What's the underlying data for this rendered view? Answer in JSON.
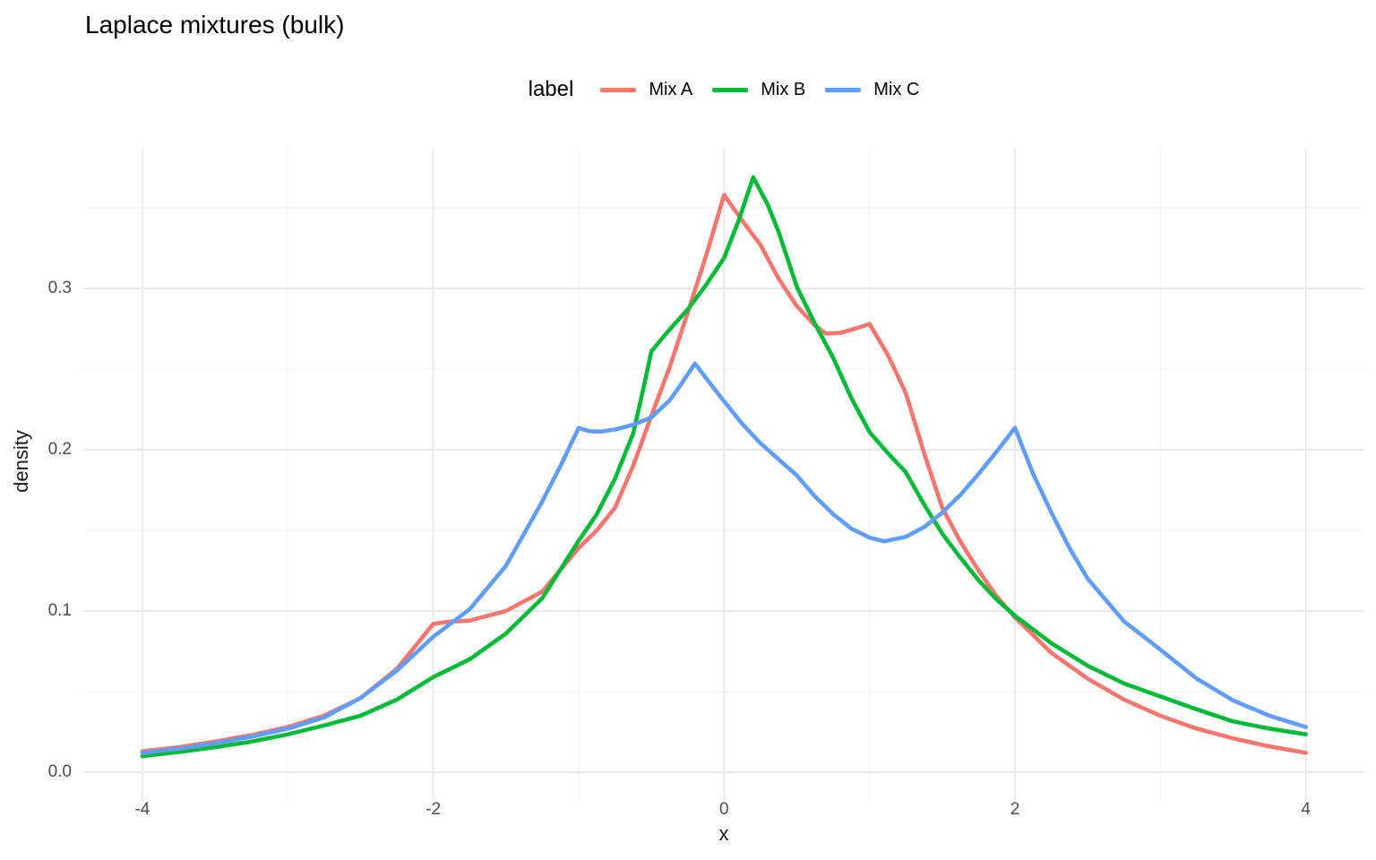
{
  "title": "Laplace mixtures (bulk)",
  "legend": {
    "title": "label",
    "items": [
      {
        "label": "Mix A",
        "color": "#F8766D"
      },
      {
        "label": "Mix B",
        "color": "#00BA38"
      },
      {
        "label": "Mix C",
        "color": "#619CFF"
      }
    ]
  },
  "axes": {
    "x_title": "x",
    "y_title": "density"
  },
  "colors": {
    "background": "#FFFFFF",
    "grid_major": "#E9E9E9",
    "grid_minor": "#F2F2F2",
    "tick_text": "#4D4D4D",
    "title_text": "#000000"
  },
  "chart_data": {
    "type": "line",
    "title": "Laplace mixtures (bulk)",
    "xlabel": "x",
    "ylabel": "density",
    "legend_title": "label",
    "legend_position": "top-center",
    "grid": "major and minor, light gray on white (ggplot theme_minimal)",
    "xlim": [
      -4.4,
      4.4
    ],
    "ylim": [
      -0.018,
      0.387
    ],
    "x_major_ticks": [
      {
        "label": "-4",
        "value": -4
      },
      {
        "label": "-2",
        "value": -2
      },
      {
        "label": "0",
        "value": 0
      },
      {
        "label": "2",
        "value": 2
      },
      {
        "label": "4",
        "value": 4
      }
    ],
    "x_minor_ticks": [
      -3,
      -1,
      1,
      3
    ],
    "y_major_ticks": [
      {
        "label": "0.0",
        "value": 0
      },
      {
        "label": "0.1",
        "value": 0.1
      },
      {
        "label": "0.2",
        "value": 0.2
      },
      {
        "label": "0.3",
        "value": 0.3
      }
    ],
    "y_minor_ticks": [
      0.05,
      0.15,
      0.25,
      0.35
    ],
    "features": {
      "mix_a": "peak 0.358 at x=0, secondary local max 0.278 at x=1, kink 0.092 at x=-2",
      "mix_b": "peak 0.369 at x=0.2, kink 0.261 at x=-0.5",
      "mix_c": "peak 0.2535 at x=-0.2, kink local max 0.2135 at x=-1, local min 0.143 at x=1.1, peak 0.2135 at x=2"
    },
    "series": [
      {
        "name": "Mix A",
        "color": "#F8766D",
        "points": [
          [
            -4,
            0.013
          ],
          [
            -3.75,
            0.0155
          ],
          [
            -3.5,
            0.019
          ],
          [
            -3.25,
            0.023
          ],
          [
            -3,
            0.028
          ],
          [
            -2.75,
            0.035
          ],
          [
            -2.5,
            0.046
          ],
          [
            -2.25,
            0.064
          ],
          [
            -2,
            0.092
          ],
          [
            -1.875,
            0.0935
          ],
          [
            -1.75,
            0.094
          ],
          [
            -1.5,
            0.1
          ],
          [
            -1.25,
            0.112
          ],
          [
            -1,
            0.139
          ],
          [
            -0.875,
            0.15
          ],
          [
            -0.75,
            0.164
          ],
          [
            -0.625,
            0.19
          ],
          [
            -0.5,
            0.221
          ],
          [
            -0.375,
            0.251
          ],
          [
            -0.25,
            0.285
          ],
          [
            -0.125,
            0.32
          ],
          [
            0,
            0.358
          ],
          [
            0.125,
            0.342
          ],
          [
            0.25,
            0.327
          ],
          [
            0.375,
            0.306
          ],
          [
            0.5,
            0.289
          ],
          [
            0.625,
            0.277
          ],
          [
            0.7,
            0.272
          ],
          [
            0.8,
            0.2725
          ],
          [
            0.9,
            0.275
          ],
          [
            1,
            0.278
          ],
          [
            1.125,
            0.259
          ],
          [
            1.25,
            0.235
          ],
          [
            1.375,
            0.198
          ],
          [
            1.5,
            0.164
          ],
          [
            1.625,
            0.143
          ],
          [
            1.75,
            0.125
          ],
          [
            1.875,
            0.109
          ],
          [
            2,
            0.096
          ],
          [
            2.25,
            0.074
          ],
          [
            2.5,
            0.058
          ],
          [
            2.75,
            0.045
          ],
          [
            3,
            0.035
          ],
          [
            3.25,
            0.027
          ],
          [
            3.5,
            0.021
          ],
          [
            3.75,
            0.016
          ],
          [
            4,
            0.012
          ]
        ]
      },
      {
        "name": "Mix B",
        "color": "#00BA38",
        "points": [
          [
            -4,
            0.01
          ],
          [
            -3.75,
            0.0125
          ],
          [
            -3.5,
            0.0155
          ],
          [
            -3.25,
            0.019
          ],
          [
            -3,
            0.0235
          ],
          [
            -2.75,
            0.029
          ],
          [
            -2.5,
            0.035
          ],
          [
            -2.25,
            0.045
          ],
          [
            -2,
            0.059
          ],
          [
            -1.75,
            0.07
          ],
          [
            -1.5,
            0.086
          ],
          [
            -1.25,
            0.108
          ],
          [
            -1,
            0.1435
          ],
          [
            -0.875,
            0.16
          ],
          [
            -0.75,
            0.182
          ],
          [
            -0.625,
            0.21
          ],
          [
            -0.55,
            0.24
          ],
          [
            -0.5,
            0.261
          ],
          [
            -0.375,
            0.2745
          ],
          [
            -0.25,
            0.287
          ],
          [
            -0.125,
            0.302
          ],
          [
            0,
            0.319
          ],
          [
            0.1,
            0.342
          ],
          [
            0.2,
            0.369
          ],
          [
            0.3,
            0.352
          ],
          [
            0.375,
            0.335
          ],
          [
            0.5,
            0.301
          ],
          [
            0.625,
            0.278
          ],
          [
            0.75,
            0.257
          ],
          [
            0.875,
            0.232
          ],
          [
            1,
            0.211
          ],
          [
            1.125,
            0.198
          ],
          [
            1.25,
            0.186
          ],
          [
            1.375,
            0.166
          ],
          [
            1.5,
            0.148
          ],
          [
            1.625,
            0.133
          ],
          [
            1.75,
            0.119
          ],
          [
            1.875,
            0.107
          ],
          [
            2,
            0.097
          ],
          [
            2.25,
            0.08
          ],
          [
            2.5,
            0.066
          ],
          [
            2.75,
            0.055
          ],
          [
            3,
            0.047
          ],
          [
            3.25,
            0.039
          ],
          [
            3.5,
            0.0315
          ],
          [
            3.75,
            0.027
          ],
          [
            4,
            0.0235
          ]
        ]
      },
      {
        "name": "Mix C",
        "color": "#619CFF",
        "points": [
          [
            -4,
            0.012
          ],
          [
            -3.75,
            0.0145
          ],
          [
            -3.5,
            0.018
          ],
          [
            -3.25,
            0.022
          ],
          [
            -3,
            0.027
          ],
          [
            -2.75,
            0.034
          ],
          [
            -2.5,
            0.046
          ],
          [
            -2.25,
            0.063
          ],
          [
            -2,
            0.084
          ],
          [
            -1.75,
            0.101
          ],
          [
            -1.5,
            0.128
          ],
          [
            -1.375,
            0.148
          ],
          [
            -1.25,
            0.168
          ],
          [
            -1.125,
            0.19
          ],
          [
            -1,
            0.2135
          ],
          [
            -0.925,
            0.2115
          ],
          [
            -0.85,
            0.2112
          ],
          [
            -0.75,
            0.2125
          ],
          [
            -0.625,
            0.2155
          ],
          [
            -0.5,
            0.22
          ],
          [
            -0.375,
            0.2305
          ],
          [
            -0.3,
            0.24
          ],
          [
            -0.2,
            0.2535
          ],
          [
            -0.1,
            0.2415
          ],
          [
            0,
            0.23
          ],
          [
            0.125,
            0.216
          ],
          [
            0.25,
            0.204
          ],
          [
            0.375,
            0.194
          ],
          [
            0.5,
            0.184
          ],
          [
            0.625,
            0.171
          ],
          [
            0.75,
            0.16
          ],
          [
            0.875,
            0.151
          ],
          [
            1,
            0.1455
          ],
          [
            1.1,
            0.1432
          ],
          [
            1.25,
            0.146
          ],
          [
            1.375,
            0.152
          ],
          [
            1.5,
            0.161
          ],
          [
            1.625,
            0.172
          ],
          [
            1.75,
            0.185
          ],
          [
            1.875,
            0.199
          ],
          [
            2,
            0.2135
          ],
          [
            2.125,
            0.185
          ],
          [
            2.25,
            0.161
          ],
          [
            2.375,
            0.139
          ],
          [
            2.5,
            0.12
          ],
          [
            2.75,
            0.0935
          ],
          [
            3,
            0.076
          ],
          [
            3.25,
            0.058
          ],
          [
            3.5,
            0.0445
          ],
          [
            3.75,
            0.035
          ],
          [
            4,
            0.028
          ]
        ]
      }
    ]
  }
}
